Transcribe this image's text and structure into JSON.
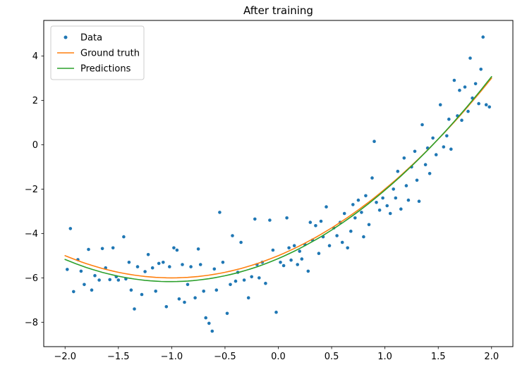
{
  "chart_data": {
    "type": "scatter",
    "title": "After training",
    "xlabel": "",
    "ylabel": "",
    "xlim": [
      -2.2,
      2.2
    ],
    "ylim": [
      -9.1,
      5.6
    ],
    "xticks": [
      -2.0,
      -1.5,
      -1.0,
      -0.5,
      0.0,
      0.5,
      1.0,
      1.5,
      2.0
    ],
    "xtick_labels": [
      "−2.0",
      "−1.5",
      "−1.0",
      "−0.5",
      "0.0",
      "0.5",
      "1.0",
      "1.5",
      "2.0"
    ],
    "yticks": [
      -8,
      -6,
      -4,
      -2,
      0,
      2,
      4
    ],
    "ytick_labels": [
      "−8",
      "−6",
      "−4",
      "−2",
      "0",
      "2",
      "4"
    ],
    "grid": false,
    "legend_position": "upper-left",
    "frame_color": "#000000",
    "background_color": "#ffffff",
    "series": [
      {
        "name": "Data",
        "type": "scatter",
        "color": "#1f77b4",
        "marker": "dot",
        "points": [
          [
            -1.98,
            -5.62
          ],
          [
            -1.95,
            -3.78
          ],
          [
            -1.92,
            -6.62
          ],
          [
            -1.88,
            -5.18
          ],
          [
            -1.85,
            -5.7
          ],
          [
            -1.82,
            -6.3
          ],
          [
            -1.78,
            -4.72
          ],
          [
            -1.75,
            -6.55
          ],
          [
            -1.72,
            -5.9
          ],
          [
            -1.68,
            -6.1
          ],
          [
            -1.65,
            -4.68
          ],
          [
            -1.62,
            -5.55
          ],
          [
            -1.58,
            -6.08
          ],
          [
            -1.55,
            -4.65
          ],
          [
            -1.52,
            -5.95
          ],
          [
            -1.5,
            -6.1
          ],
          [
            -1.45,
            -4.15
          ],
          [
            -1.43,
            -6.05
          ],
          [
            -1.4,
            -5.3
          ],
          [
            -1.38,
            -6.55
          ],
          [
            -1.35,
            -7.4
          ],
          [
            -1.32,
            -5.5
          ],
          [
            -1.28,
            -6.75
          ],
          [
            -1.25,
            -5.72
          ],
          [
            -1.22,
            -4.95
          ],
          [
            -1.18,
            -5.55
          ],
          [
            -1.15,
            -6.6
          ],
          [
            -1.12,
            -5.35
          ],
          [
            -1.08,
            -5.3
          ],
          [
            -1.05,
            -7.3
          ],
          [
            -1.02,
            -5.5
          ],
          [
            -0.98,
            -4.65
          ],
          [
            -0.95,
            -4.75
          ],
          [
            -0.93,
            -6.95
          ],
          [
            -0.9,
            -5.4
          ],
          [
            -0.88,
            -7.1
          ],
          [
            -0.85,
            -6.3
          ],
          [
            -0.82,
            -5.5
          ],
          [
            -0.78,
            -6.9
          ],
          [
            -0.75,
            -4.7
          ],
          [
            -0.73,
            -5.4
          ],
          [
            -0.7,
            -6.6
          ],
          [
            -0.68,
            -7.8
          ],
          [
            -0.65,
            -8.05
          ],
          [
            -0.62,
            -8.4
          ],
          [
            -0.6,
            -5.6
          ],
          [
            -0.58,
            -6.55
          ],
          [
            -0.55,
            -3.05
          ],
          [
            -0.52,
            -5.3
          ],
          [
            -0.48,
            -7.6
          ],
          [
            -0.45,
            -6.3
          ],
          [
            -0.43,
            -4.1
          ],
          [
            -0.4,
            -6.15
          ],
          [
            -0.38,
            -5.75
          ],
          [
            -0.35,
            -4.4
          ],
          [
            -0.32,
            -6.1
          ],
          [
            -0.28,
            -6.9
          ],
          [
            -0.25,
            -5.95
          ],
          [
            -0.22,
            -3.35
          ],
          [
            -0.2,
            -5.4
          ],
          [
            -0.18,
            -6.0
          ],
          [
            -0.15,
            -5.3
          ],
          [
            -0.12,
            -6.25
          ],
          [
            -0.08,
            -3.4
          ],
          [
            -0.05,
            -4.75
          ],
          [
            -0.02,
            -7.55
          ],
          [
            0.02,
            -5.3
          ],
          [
            0.05,
            -5.45
          ],
          [
            0.08,
            -3.3
          ],
          [
            0.1,
            -4.65
          ],
          [
            0.12,
            -5.2
          ],
          [
            0.15,
            -4.55
          ],
          [
            0.18,
            -5.4
          ],
          [
            0.2,
            -4.8
          ],
          [
            0.22,
            -5.15
          ],
          [
            0.25,
            -4.5
          ],
          [
            0.28,
            -5.7
          ],
          [
            0.3,
            -3.5
          ],
          [
            0.32,
            -4.3
          ],
          [
            0.35,
            -3.65
          ],
          [
            0.38,
            -4.9
          ],
          [
            0.4,
            -3.45
          ],
          [
            0.42,
            -4.15
          ],
          [
            0.45,
            -2.8
          ],
          [
            0.48,
            -4.55
          ],
          [
            0.52,
            -3.75
          ],
          [
            0.55,
            -4.1
          ],
          [
            0.58,
            -3.5
          ],
          [
            0.6,
            -4.4
          ],
          [
            0.62,
            -3.1
          ],
          [
            0.65,
            -4.65
          ],
          [
            0.68,
            -3.9
          ],
          [
            0.7,
            -2.7
          ],
          [
            0.72,
            -3.3
          ],
          [
            0.75,
            -2.5
          ],
          [
            0.78,
            -3.05
          ],
          [
            0.8,
            -4.15
          ],
          [
            0.82,
            -2.3
          ],
          [
            0.85,
            -3.6
          ],
          [
            0.88,
            -1.5
          ],
          [
            0.9,
            0.15
          ],
          [
            0.92,
            -2.6
          ],
          [
            0.95,
            -2.95
          ],
          [
            0.98,
            -2.4
          ],
          [
            1.02,
            -2.75
          ],
          [
            1.05,
            -3.1
          ],
          [
            1.08,
            -2.0
          ],
          [
            1.1,
            -2.4
          ],
          [
            1.12,
            -1.2
          ],
          [
            1.15,
            -2.9
          ],
          [
            1.18,
            -0.6
          ],
          [
            1.2,
            -1.85
          ],
          [
            1.22,
            -2.5
          ],
          [
            1.25,
            -1.0
          ],
          [
            1.28,
            -0.3
          ],
          [
            1.3,
            -1.6
          ],
          [
            1.32,
            -2.55
          ],
          [
            1.35,
            0.9
          ],
          [
            1.38,
            -0.9
          ],
          [
            1.4,
            -0.15
          ],
          [
            1.42,
            -1.3
          ],
          [
            1.45,
            0.3
          ],
          [
            1.48,
            -0.45
          ],
          [
            1.52,
            1.8
          ],
          [
            1.55,
            -0.1
          ],
          [
            1.58,
            0.4
          ],
          [
            1.6,
            1.15
          ],
          [
            1.62,
            -0.2
          ],
          [
            1.65,
            2.9
          ],
          [
            1.68,
            1.3
          ],
          [
            1.7,
            2.45
          ],
          [
            1.72,
            1.1
          ],
          [
            1.75,
            2.6
          ],
          [
            1.78,
            1.5
          ],
          [
            1.8,
            3.9
          ],
          [
            1.82,
            2.1
          ],
          [
            1.85,
            2.75
          ],
          [
            1.88,
            1.85
          ],
          [
            1.9,
            3.4
          ],
          [
            1.92,
            4.85
          ],
          [
            1.95,
            1.8
          ],
          [
            1.98,
            1.7
          ]
        ]
      },
      {
        "name": "Ground truth",
        "type": "line",
        "color": "#ff7f0e",
        "poly_coeffs": [
          1.0,
          2.0,
          -5.0
        ],
        "x_range": [
          -2.0,
          2.0
        ]
      },
      {
        "name": "Predictions",
        "type": "line",
        "color": "#2ca02c",
        "poly_coeffs": [
          1.02,
          2.06,
          -5.13
        ],
        "x_range": [
          -2.0,
          2.0
        ]
      }
    ]
  }
}
